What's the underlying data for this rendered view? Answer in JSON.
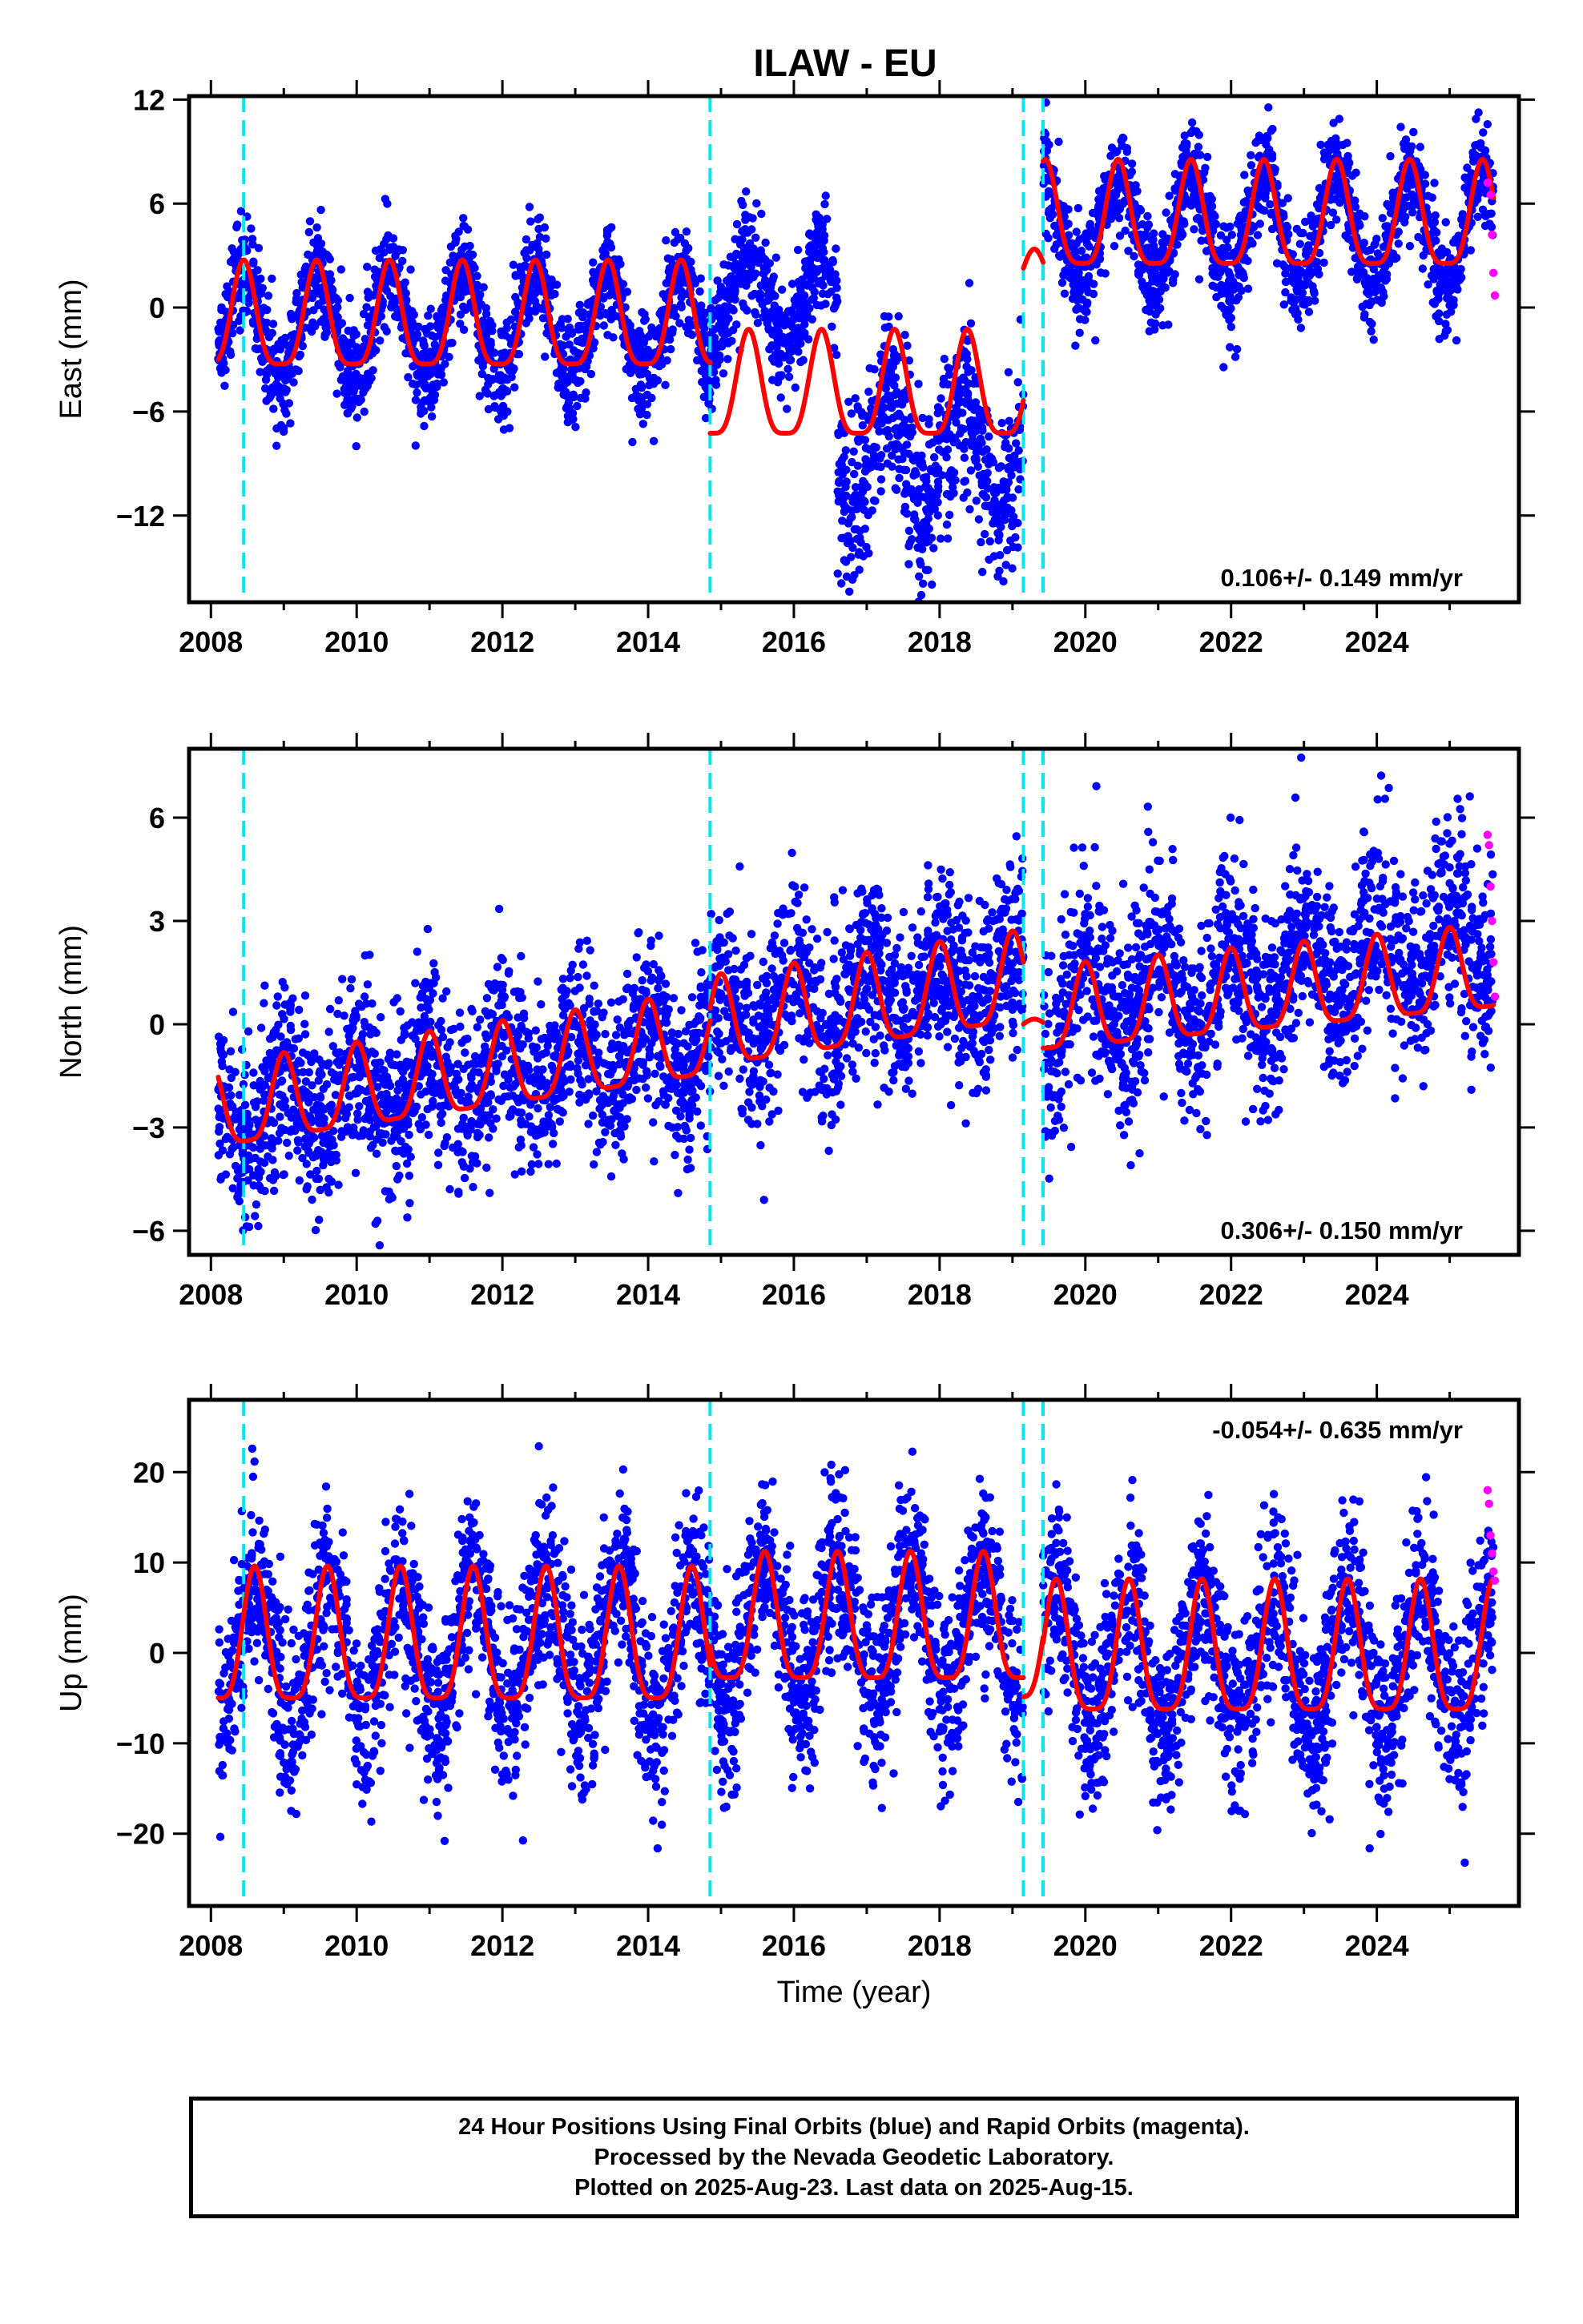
{
  "header": {
    "title": "ILAW - EU"
  },
  "colors": {
    "final": "#0000ff",
    "rapid": "#ff00ff",
    "model": "#ff0000",
    "step": "#00e8f0"
  },
  "chart_data": [
    {
      "type": "scatter",
      "component": "east",
      "title": "ILAW - EU",
      "xlabel": "",
      "ylabel": "East (mm)",
      "xlim": [
        2007.7,
        2025.95
      ],
      "ylim": [
        -17,
        12.2
      ],
      "yticks": [
        12,
        6,
        0,
        -6,
        -12
      ],
      "ytick_labels": [
        "12",
        "6",
        "0",
        "−6",
        "−12"
      ],
      "xticks": [
        2008,
        2010,
        2012,
        2014,
        2016,
        2018,
        2020,
        2022,
        2024
      ],
      "xtick_labels": [
        "2008",
        "2010",
        "2012",
        "2014",
        "2016",
        "2018",
        "2020",
        "2022",
        "2024"
      ],
      "step_lines": [
        2008.45,
        2014.85,
        2019.15,
        2019.42
      ],
      "annotation": "0.106+/- 0.149 mm/yr",
      "annotation_position": "bottom-right",
      "model_segments": [
        {
          "x": [
            2008.1,
            2014.85
          ],
          "offset": -1.0,
          "trend": 0.0,
          "amp": 3.0,
          "phase": 2008.45
        },
        {
          "x": [
            2014.85,
            2019.15
          ],
          "offset": -5.0,
          "trend": 0.0,
          "amp": 3.0,
          "phase": 2015.38
        },
        {
          "x": [
            2019.15,
            2019.42
          ],
          "offset": 1.5,
          "trend": 0.0,
          "amp": 1.5,
          "phase": 2019.3
        },
        {
          "x": [
            2019.42,
            2025.6
          ],
          "offset": 4.8,
          "trend": 0.0,
          "amp": 3.0,
          "phase": 2020.45
        }
      ],
      "rapid": {
        "x": [
          2025.52,
          2025.56,
          2025.58,
          2025.6,
          2025.62
        ],
        "y": [
          7.2,
          6.5,
          4.2,
          2.0,
          0.7
        ]
      },
      "final_segments": [
        {
          "x": [
            2008.1,
            2014.85
          ],
          "offset": -1.0,
          "amp": 3.0,
          "phase": 2008.45,
          "noise": 1.5
        },
        {
          "x": [
            2014.85,
            2016.6
          ],
          "offset": 0.5,
          "amp": 2.5,
          "phase": 2015.38,
          "noise": 1.6
        },
        {
          "x": [
            2016.6,
            2019.15
          ],
          "offset": -8.5,
          "amp": 3.0,
          "phase": 2017.3,
          "noise": 2.6
        },
        {
          "x": [
            2019.42,
            2025.6
          ],
          "offset": 4.5,
          "amp": 3.2,
          "phase": 2020.45,
          "noise": 1.5
        }
      ]
    },
    {
      "type": "scatter",
      "component": "north",
      "xlabel": "",
      "ylabel": "North (mm)",
      "xlim": [
        2007.7,
        2025.95
      ],
      "ylim": [
        -6.7,
        8.0
      ],
      "yticks": [
        6,
        3,
        0,
        -3,
        -6
      ],
      "ytick_labels": [
        "6",
        "3",
        "0",
        "−3",
        "−6"
      ],
      "xticks": [
        2008,
        2010,
        2012,
        2014,
        2016,
        2018,
        2020,
        2022,
        2024
      ],
      "xtick_labels": [
        "2008",
        "2010",
        "2012",
        "2014",
        "2016",
        "2018",
        "2020",
        "2022",
        "2024"
      ],
      "step_lines": [
        2008.45,
        2014.85,
        2019.15,
        2019.42
      ],
      "annotation": "0.306+/- 0.150 mm/yr",
      "annotation_position": "bottom-right",
      "model_segments": [
        {
          "x": [
            2008.1,
            2014.85
          ],
          "offset": -2.6,
          "trend": 0.31,
          "amp": 1.2,
          "phase": 2009.0,
          "start": 2008.1
        },
        {
          "x": [
            2014.85,
            2019.15
          ],
          "offset": -0.2,
          "trend": 0.31,
          "amp": 1.3,
          "phase": 2015.0,
          "start": 2014.85
        },
        {
          "x": [
            2019.15,
            2019.42
          ],
          "offset": -0.1,
          "trend": 0.0,
          "amp": 0.2,
          "phase": 2019.3,
          "start": 2019.15
        },
        {
          "x": [
            2019.42,
            2025.6
          ],
          "offset": 0.2,
          "trend": 0.2,
          "amp": 1.2,
          "phase": 2020.0,
          "start": 2019.42
        }
      ],
      "rapid": {
        "x": [
          2025.52,
          2025.54,
          2025.56,
          2025.58,
          2025.6,
          2025.62
        ],
        "y": [
          5.5,
          5.2,
          4.0,
          3.0,
          1.8,
          0.8
        ]
      },
      "final_segments": [
        {
          "x": [
            2008.1,
            2014.85
          ],
          "offset": -2.6,
          "trend": 0.31,
          "amp": 1.0,
          "phase": 2009.0,
          "noise": 1.3,
          "start": 2008.1
        },
        {
          "x": [
            2014.85,
            2019.15
          ],
          "offset": 0.1,
          "trend": 0.31,
          "amp": 1.0,
          "phase": 2015.0,
          "noise": 1.3,
          "start": 2014.85
        },
        {
          "x": [
            2019.42,
            2025.6
          ],
          "offset": 0.3,
          "trend": 0.35,
          "amp": 1.3,
          "phase": 2020.0,
          "noise": 1.4,
          "start": 2019.42
        }
      ]
    },
    {
      "type": "scatter",
      "component": "up",
      "xlabel": "Time (year)",
      "ylabel": "Up (mm)",
      "xlim": [
        2007.7,
        2025.95
      ],
      "ylim": [
        -28,
        28
      ],
      "yticks": [
        20,
        10,
        0,
        -10,
        -20
      ],
      "ytick_labels": [
        "20",
        "10",
        "0",
        "−10",
        "−20"
      ],
      "xticks": [
        2008,
        2010,
        2012,
        2014,
        2016,
        2018,
        2020,
        2022,
        2024
      ],
      "xtick_labels": [
        "2008",
        "2010",
        "2012",
        "2014",
        "2016",
        "2018",
        "2020",
        "2022",
        "2024"
      ],
      "step_lines": [
        2008.45,
        2014.85,
        2019.15,
        2019.42
      ],
      "annotation": "-0.054+/- 0.635 mm/yr",
      "annotation_position": "top-right",
      "model_segments": [
        {
          "x": [
            2008.1,
            2014.85
          ],
          "offset": 0.5,
          "trend": 0.0,
          "amp": 7.3,
          "phase": 2008.6
        },
        {
          "x": [
            2014.85,
            2019.15
          ],
          "offset": 2.5,
          "trend": 0.0,
          "amp": 7.0,
          "phase": 2015.6
        },
        {
          "x": [
            2019.15,
            2019.42
          ],
          "offset": 0.0,
          "trend": 0.0,
          "amp": 6.5,
          "phase": 2019.6
        },
        {
          "x": [
            2019.42,
            2025.6
          ],
          "offset": -0.8,
          "trend": 0.0,
          "amp": 7.2,
          "phase": 2020.6
        }
      ],
      "rapid": {
        "x": [
          2025.52,
          2025.54,
          2025.56,
          2025.58,
          2025.6,
          2025.62
        ],
        "y": [
          18.0,
          16.5,
          13.0,
          11.0,
          9.0,
          8.0
        ]
      },
      "final_segments": [
        {
          "x": [
            2008.1,
            2014.85
          ],
          "offset": 0.5,
          "amp": 8.0,
          "phase": 2008.6,
          "noise": 5.0
        },
        {
          "x": [
            2014.85,
            2019.15
          ],
          "offset": 2.5,
          "amp": 7.5,
          "phase": 2015.6,
          "noise": 5.0
        },
        {
          "x": [
            2019.42,
            2025.6
          ],
          "offset": -0.8,
          "amp": 7.5,
          "phase": 2020.6,
          "noise": 5.0
        }
      ]
    }
  ],
  "footer": {
    "line1": "24 Hour Positions Using Final Orbits (blue) and Rapid Orbits (magenta).",
    "line2": "Processed by the Nevada Geodetic Laboratory.",
    "line3": "Plotted on 2025-Aug-23. Last data on 2025-Aug-15."
  }
}
